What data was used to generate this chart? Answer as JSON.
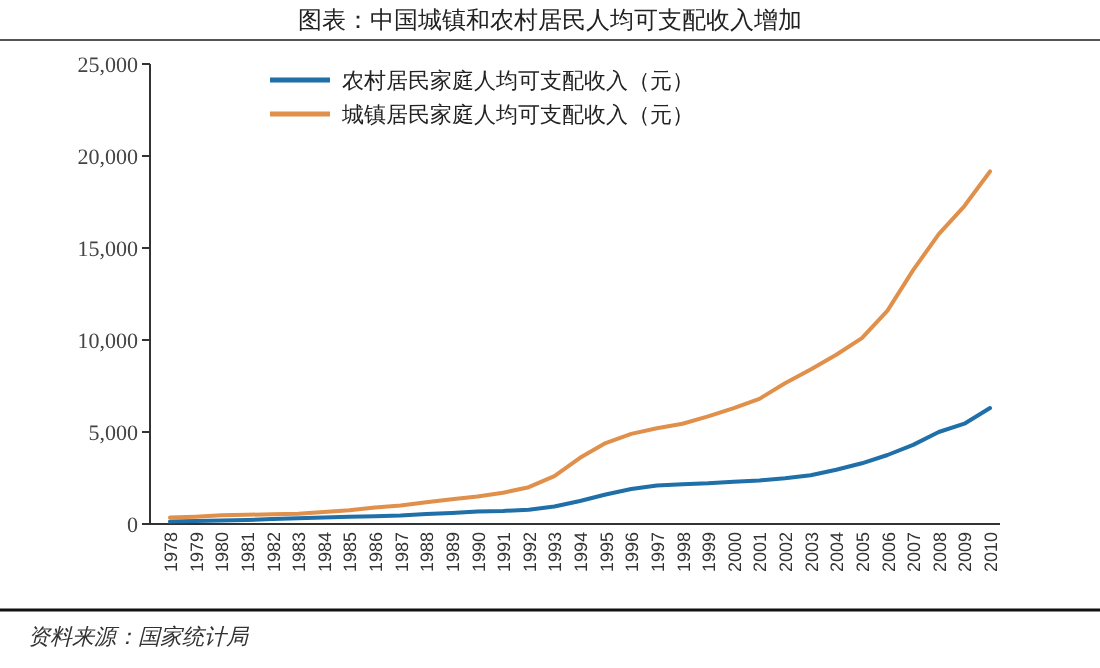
{
  "chart_data": {
    "type": "line",
    "title": "图表：中国城镇和农村居民人均可支配收入增加",
    "categories": [
      "1978",
      "1979",
      "1980",
      "1981",
      "1982",
      "1983",
      "1984",
      "1985",
      "1986",
      "1987",
      "1988",
      "1989",
      "1990",
      "1991",
      "1992",
      "1993",
      "1994",
      "1995",
      "1996",
      "1997",
      "1998",
      "1999",
      "2000",
      "2001",
      "2002",
      "2003",
      "2004",
      "2005",
      "2006",
      "2007",
      "2008",
      "2009",
      "2010"
    ],
    "series": [
      {
        "name": "农村居民家庭人均可支配收入（元）",
        "color": "#1f6fa8",
        "values": [
          130,
          160,
          190,
          220,
          270,
          310,
          350,
          400,
          420,
          460,
          540,
          600,
          680,
          710,
          780,
          950,
          1250,
          1600,
          1900,
          2090,
          2160,
          2210,
          2300,
          2370,
          2480,
          2650,
          2950,
          3300,
          3750,
          4300,
          5000,
          5450,
          6300
        ]
      },
      {
        "name": "城镇居民家庭人均可支配收入（元）",
        "color": "#e0904a",
        "values": [
          350,
          400,
          480,
          500,
          530,
          560,
          650,
          750,
          900,
          1000,
          1180,
          1350,
          1500,
          1700,
          2000,
          2600,
          3600,
          4400,
          4900,
          5200,
          5450,
          5850,
          6300,
          6800,
          7650,
          8400,
          9200,
          10100,
          11600,
          13800,
          15750,
          17280,
          19160
        ]
      }
    ],
    "ylim": [
      0,
      25000
    ],
    "yticks": [
      0,
      {
        "value": 5000,
        "label": "5,000"
      },
      {
        "value": 10000,
        "label": "10,000"
      },
      {
        "value": 15000,
        "label": "15,000"
      },
      {
        "value": 20000,
        "label": "20,000"
      },
      {
        "value": 25000,
        "label": "25,000"
      }
    ],
    "legend": "top left",
    "annotations": [
      "资料来源：国家统计局"
    ]
  }
}
